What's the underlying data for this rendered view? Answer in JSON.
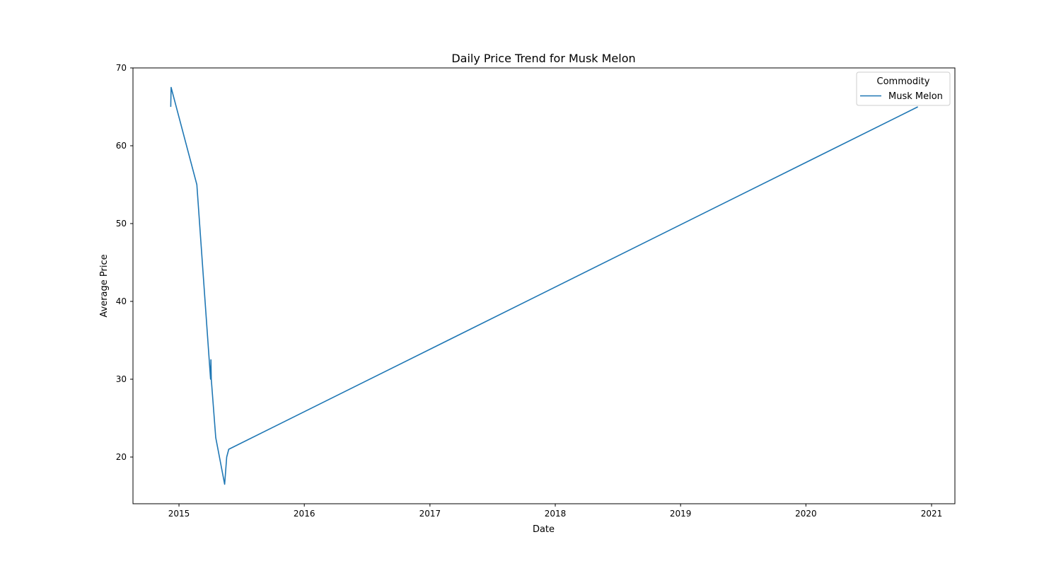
{
  "chart_data": {
    "type": "line",
    "title": "Daily Price Trend for Musk Melon",
    "xlabel": "Date",
    "ylabel": "Average Price",
    "x_type": "date",
    "xlim": [
      "2014-08-20",
      "2021-03-10"
    ],
    "ylim": [
      14,
      70
    ],
    "x_ticks": [
      {
        "value": "2015-01-01",
        "label": "2015"
      },
      {
        "value": "2016-01-01",
        "label": "2016"
      },
      {
        "value": "2017-01-01",
        "label": "2017"
      },
      {
        "value": "2018-01-01",
        "label": "2018"
      },
      {
        "value": "2019-01-01",
        "label": "2019"
      },
      {
        "value": "2020-01-01",
        "label": "2020"
      },
      {
        "value": "2021-01-01",
        "label": "2021"
      }
    ],
    "y_ticks": [
      20,
      30,
      40,
      50,
      60,
      70
    ],
    "grid": false,
    "legend": {
      "title": "Commodity",
      "position": "top-right"
    },
    "series": [
      {
        "name": "Musk Melon",
        "color": "#1f77b4",
        "points": [
          {
            "x": "2014-12-08",
            "y": 65
          },
          {
            "x": "2014-12-09",
            "y": 67.5
          },
          {
            "x": "2015-02-22",
            "y": 55
          },
          {
            "x": "2015-04-03",
            "y": 30
          },
          {
            "x": "2015-04-04",
            "y": 32.5
          },
          {
            "x": "2015-04-05",
            "y": 30
          },
          {
            "x": "2015-04-18",
            "y": 22.5
          },
          {
            "x": "2015-05-14",
            "y": 16.5
          },
          {
            "x": "2015-05-20",
            "y": 20
          },
          {
            "x": "2015-05-26",
            "y": 21
          },
          {
            "x": "2020-11-22",
            "y": 65
          }
        ]
      }
    ]
  }
}
